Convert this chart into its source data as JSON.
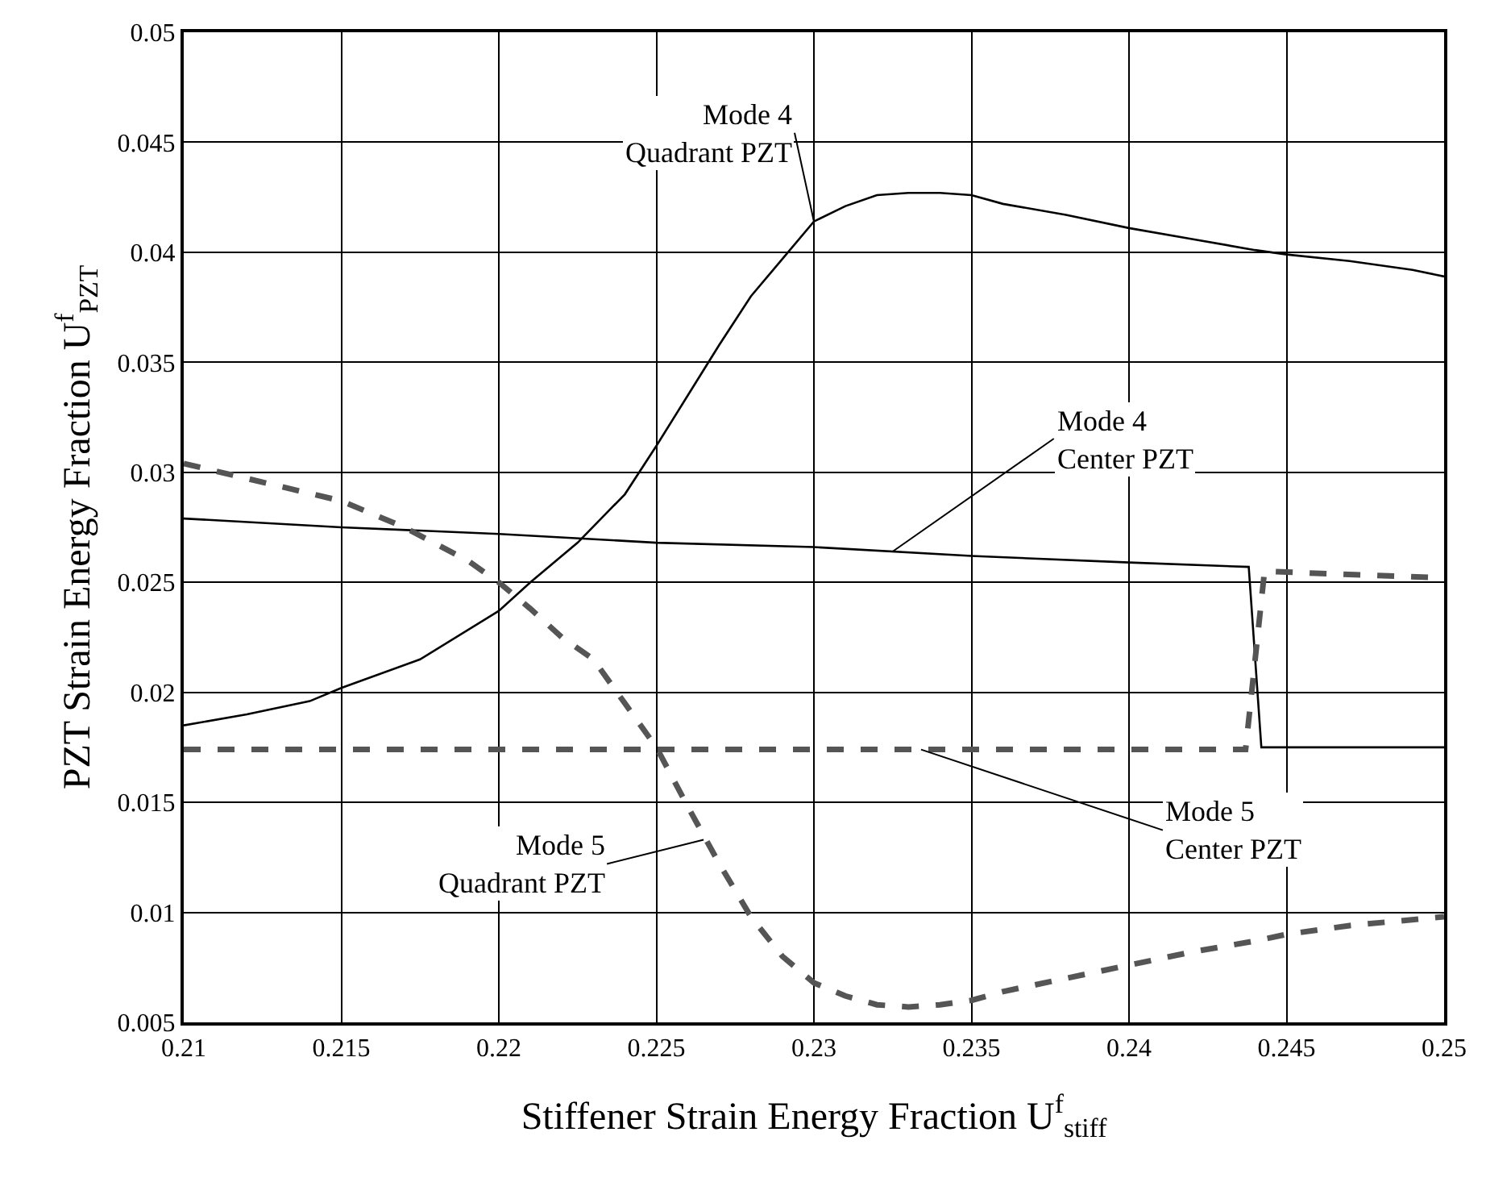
{
  "chart_data": {
    "type": "line",
    "xlabel": "Stiffener Strain Energy Fraction U$^{f}$$_{stiff}$",
    "ylabel": "PZT Strain Energy Fraction U$^{f}$$_{PZT}$",
    "xlim": [
      0.21,
      0.25
    ],
    "xticks": [
      0.21,
      0.215,
      0.22,
      0.225,
      0.23,
      0.235,
      0.24,
      0.245,
      0.25
    ],
    "ylim": [
      0.005,
      0.05
    ],
    "yticks": [
      0.005,
      0.01,
      0.015,
      0.02,
      0.025,
      0.03,
      0.035,
      0.04,
      0.045,
      0.05
    ],
    "grid": true,
    "marker": "none",
    "series": [
      {
        "color": "#000000",
        "line_style": "solid",
        "x": [
          0.21,
          0.212,
          0.214,
          0.215,
          0.2175,
          0.22,
          0.221,
          0.2225,
          0.224,
          0.225,
          0.226,
          0.227,
          0.228,
          0.229,
          0.23,
          0.231,
          0.232,
          0.233,
          0.234,
          0.235,
          0.236,
          0.238,
          0.24,
          0.242,
          0.244,
          0.245,
          0.247,
          0.249,
          0.25
        ],
        "values": [
          0.0185,
          0.019,
          0.0196,
          0.0202,
          0.0215,
          0.0237,
          0.025,
          0.0268,
          0.029,
          0.0312,
          0.0335,
          0.0358,
          0.038,
          0.0397,
          0.0414,
          0.0421,
          0.0426,
          0.0427,
          0.0427,
          0.0426,
          0.0422,
          0.0417,
          0.0411,
          0.0406,
          0.0401,
          0.0399,
          0.0396,
          0.0392,
          0.0389
        ]
      },
      {
        "color": "#000000",
        "line_style": "solid",
        "x": [
          0.21,
          0.215,
          0.22,
          0.225,
          0.23,
          0.235,
          0.24,
          0.2438,
          0.2442,
          0.25
        ],
        "values": [
          0.0279,
          0.0275,
          0.0272,
          0.0268,
          0.0266,
          0.0262,
          0.0259,
          0.0257,
          0.0175,
          0.0175
        ]
      },
      {
        "color": "#555555",
        "line_style": "dashed",
        "x": [
          0.21,
          0.2437,
          0.2443,
          0.25
        ],
        "values": [
          0.0174,
          0.0174,
          0.0255,
          0.0252
        ]
      },
      {
        "color": "#555555",
        "line_style": "dashed",
        "x": [
          0.21,
          0.215,
          0.217,
          0.219,
          0.22,
          0.221,
          0.222,
          0.223,
          0.224,
          0.225,
          0.226,
          0.227,
          0.228,
          0.229,
          0.23,
          0.231,
          0.232,
          0.233,
          0.234,
          0.235,
          0.236,
          0.238,
          0.24,
          0.242,
          0.244,
          0.245,
          0.247,
          0.25
        ],
        "values": [
          0.0304,
          0.0287,
          0.0275,
          0.026,
          0.025,
          0.0238,
          0.0225,
          0.0215,
          0.0195,
          0.0175,
          0.0148,
          0.0122,
          0.0098,
          0.008,
          0.0068,
          0.0062,
          0.0058,
          0.0057,
          0.0058,
          0.006,
          0.0064,
          0.007,
          0.0076,
          0.0082,
          0.0087,
          0.009,
          0.0094,
          0.0098
        ]
      }
    ],
    "annotations": [
      {
        "text": "Mode 4\nQuadrant PZT",
        "x": 0.23,
        "y": 0.0414
      },
      {
        "text": "Mode 4\nCenter PZT",
        "x": 0.2325,
        "y": 0.0264
      },
      {
        "text": "Mode 5\nCenter PZT",
        "x": 0.2334,
        "y": 0.0174
      },
      {
        "text": "Mode 5\nQuadrant PZT",
        "x": 0.2265,
        "y": 0.0133
      }
    ]
  }
}
